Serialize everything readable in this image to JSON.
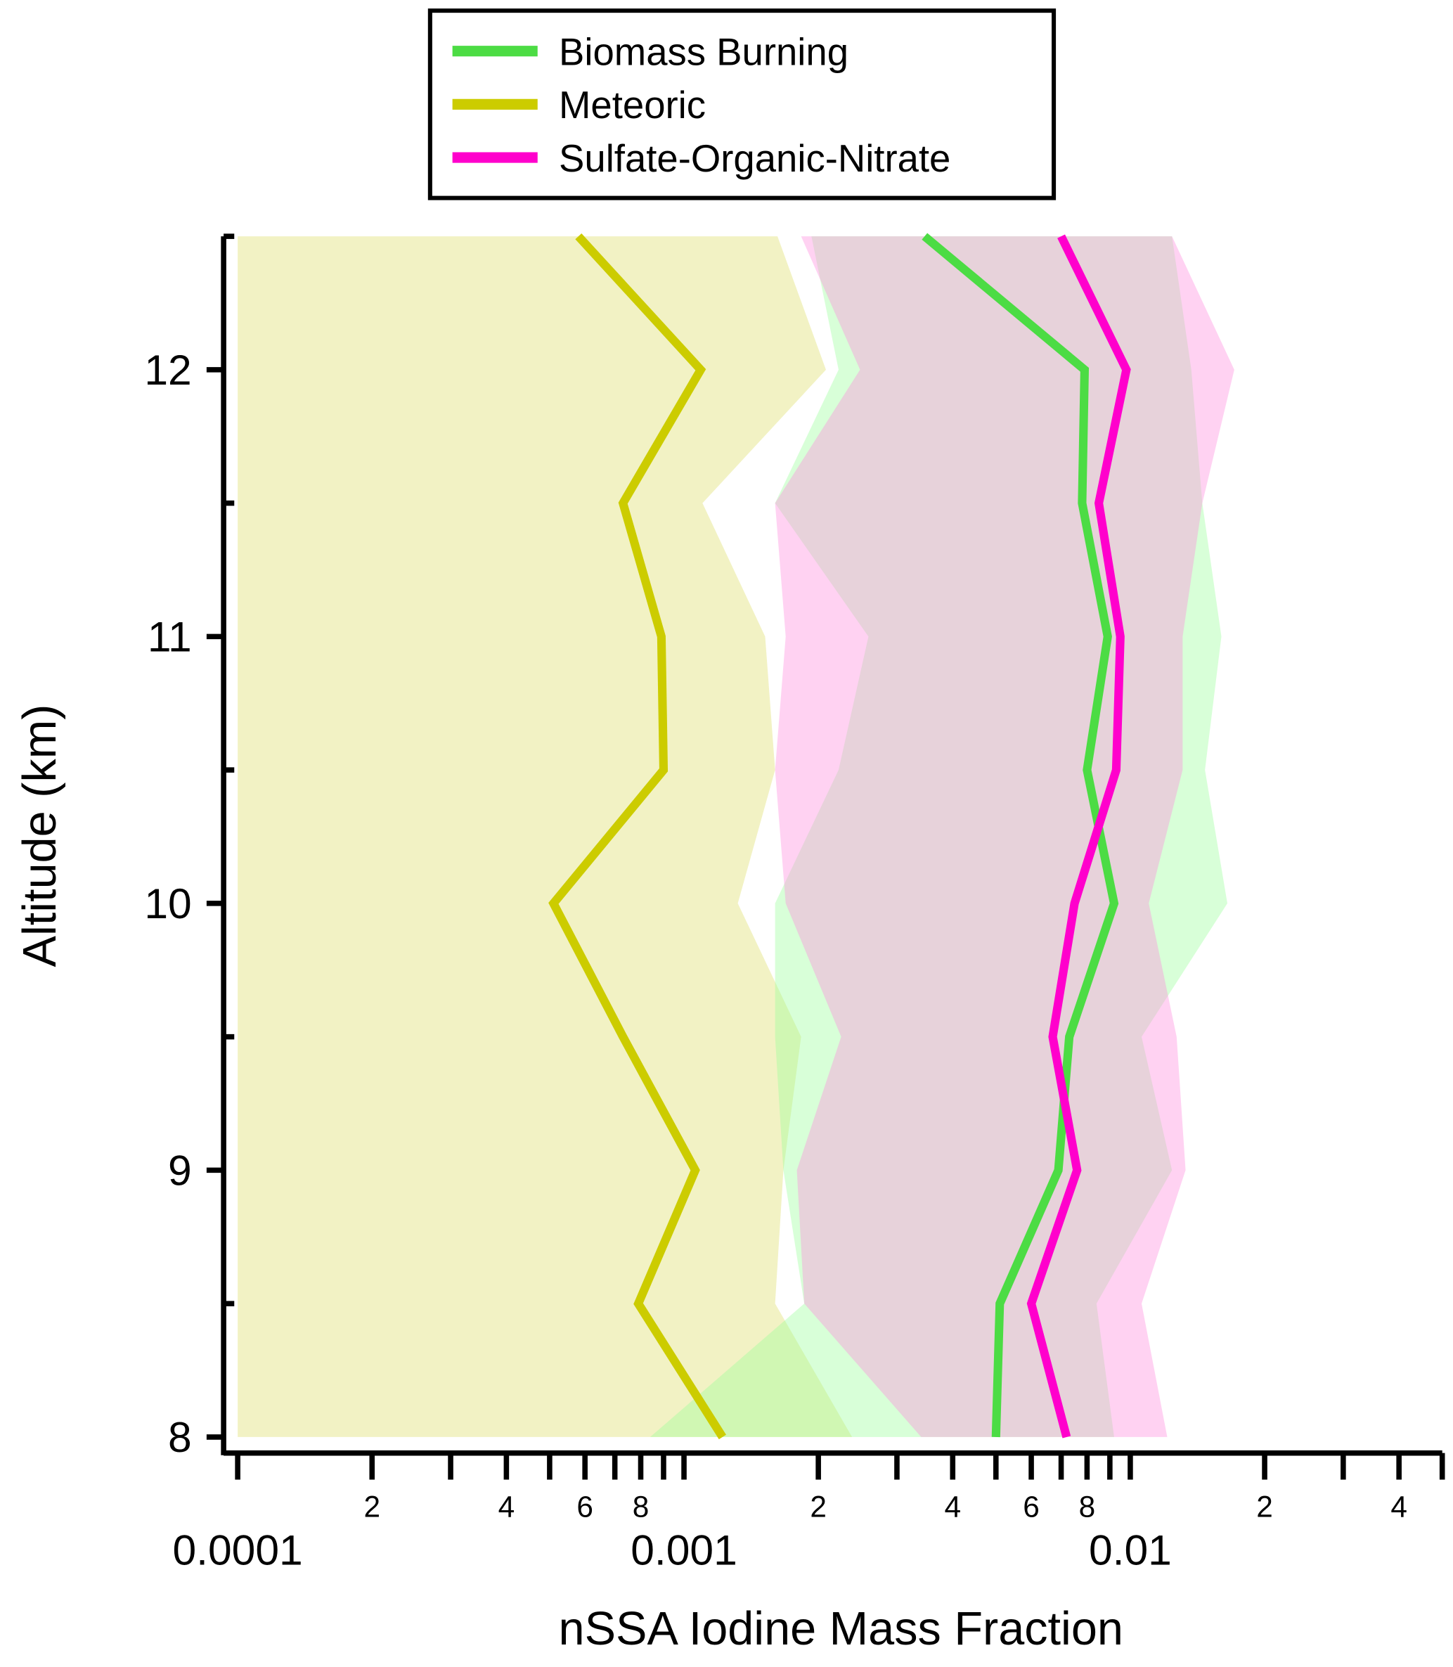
{
  "chart_data": {
    "type": "line",
    "xlabel": "nSSA Iodine Mass Fraction",
    "ylabel": "Altitude (km)",
    "xscale": "log",
    "xlim": [
      9.3e-05,
      0.05
    ],
    "ylim": [
      7.94,
      12.5
    ],
    "xticks": [
      0.0001,
      {
        "value": 0.0002,
        "label": "2"
      },
      {
        "value": 0.0004,
        "label": "4"
      },
      {
        "value": 0.0006,
        "label": "6"
      },
      {
        "value": 0.0008,
        "label": "8"
      },
      0.001,
      {
        "value": 0.002,
        "label": "2"
      },
      {
        "value": 0.004,
        "label": "4"
      },
      {
        "value": 0.006,
        "label": "6"
      },
      {
        "value": 0.008,
        "label": "8"
      },
      0.01,
      {
        "value": 0.02,
        "label": "2"
      },
      {
        "value": 0.04,
        "label": "4"
      }
    ],
    "xminorticks": [
      0.0003,
      0.0005,
      0.0007,
      0.0009,
      0.003,
      0.005,
      0.007,
      0.009,
      0.03,
      0.05
    ],
    "yticks": [
      8,
      9,
      10,
      11,
      12
    ],
    "yminorticks": [
      8.5,
      9.5,
      10.5,
      11.5,
      12.5
    ],
    "legend": "top",
    "y": [
      8,
      8.5,
      9,
      9.5,
      10,
      10.5,
      11,
      11.5,
      12,
      12.5
    ],
    "series": [
      {
        "name": "Meteoric",
        "color": "#cccc00",
        "band_color": "#e6e68a",
        "values": [
          0.00122,
          0.00079,
          0.00106,
          0.00073,
          0.00051,
          0.0009,
          0.00089,
          0.00073,
          0.00109,
          0.00058
        ],
        "lower": [
          0.0001,
          0.0001,
          0.0001,
          0.0001,
          0.0001,
          0.0001,
          0.0001,
          0.0001,
          0.0001,
          0.0001
        ],
        "upper": [
          0.00238,
          0.0016,
          0.00167,
          0.00183,
          0.00132,
          0.0016,
          0.00152,
          0.0011,
          0.00208,
          0.00162
        ]
      },
      {
        "name": "Biomass Burning",
        "color": "#4cdc44",
        "band_color": "#99ff99",
        "values": [
          0.005,
          0.0051,
          0.0069,
          0.0073,
          0.0092,
          0.008,
          0.0089,
          0.0078,
          0.0079,
          0.00346
        ],
        "lower": [
          0.00084,
          0.00186,
          0.00167,
          0.0016,
          0.0016,
          0.00222,
          0.00259,
          0.0016,
          0.00222,
          0.00193
        ],
        "upper": [
          0.0092,
          0.0084,
          0.0124,
          0.0106,
          0.0165,
          0.0147,
          0.016,
          0.0145,
          0.0137,
          0.0124
        ]
      },
      {
        "name": "Sulfate-Organic-Nitrate",
        "color": "#ff00cc",
        "band_color": "#ff88dd",
        "values": [
          0.0072,
          0.006,
          0.0076,
          0.0067,
          0.0075,
          0.0093,
          0.0095,
          0.0085,
          0.0098,
          0.007
        ],
        "lower": [
          0.0034,
          0.00186,
          0.00179,
          0.00225,
          0.00169,
          0.0016,
          0.00169,
          0.0016,
          0.00248,
          0.00183
        ],
        "upper": [
          0.0121,
          0.0106,
          0.0133,
          0.0127,
          0.011,
          0.0131,
          0.0131,
          0.0145,
          0.0171,
          0.0124
        ]
      }
    ],
    "legend_order": [
      1,
      0,
      2
    ]
  }
}
